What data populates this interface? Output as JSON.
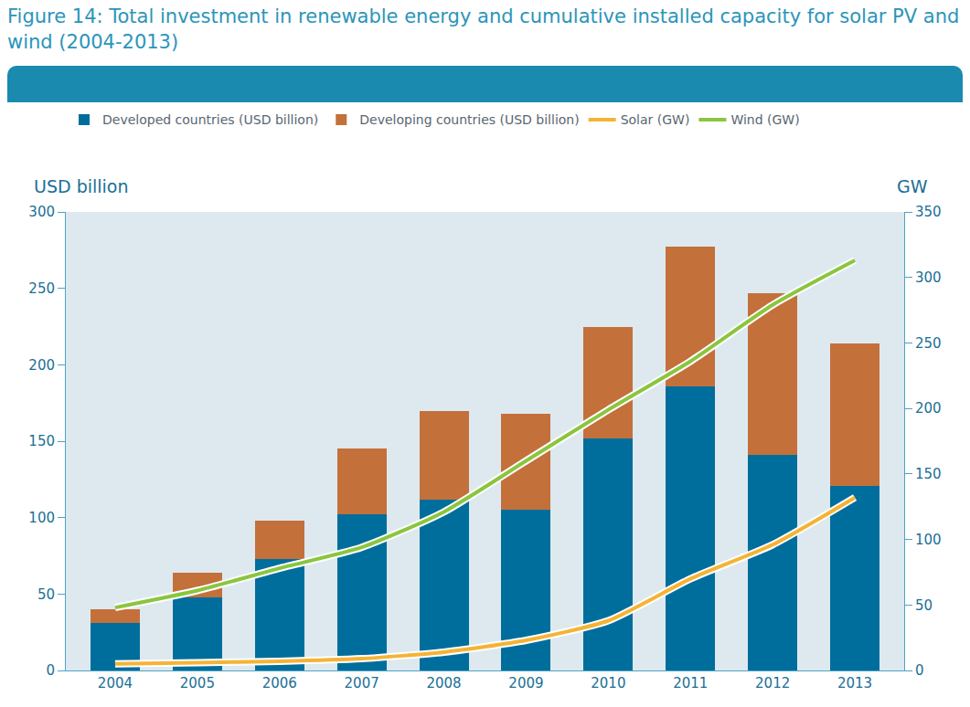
{
  "chart_data": {
    "type": "bar",
    "title": "Figure 14: Total investment in renewable energy and cumulative installed capacity for solar PV and wind (2004-2013)",
    "ylabel": "USD billion",
    "y2label": "GW",
    "categories": [
      "2004",
      "2005",
      "2006",
      "2007",
      "2008",
      "2009",
      "2010",
      "2011",
      "2012",
      "2013"
    ],
    "series": [
      {
        "name": "Developed countries (USD billion)",
        "type": "bar",
        "color": "#006e9c",
        "values": [
          31,
          48,
          73,
          102,
          112,
          105,
          152,
          186,
          141,
          121
        ]
      },
      {
        "name": "Developing countries (USD billion)",
        "type": "bar",
        "color": "#c4703b",
        "values": [
          9,
          16,
          25,
          43,
          58,
          63,
          73,
          91,
          106,
          93
        ]
      },
      {
        "name": "Solar (GW)",
        "type": "line",
        "axis": "y2",
        "color": "#f5b335",
        "values": [
          5,
          6,
          7,
          9,
          14,
          23,
          38,
          70,
          96,
          132
        ]
      },
      {
        "name": "Wind (GW)",
        "type": "line",
        "axis": "y2",
        "color": "#8bc53f",
        "values": [
          48,
          61,
          78,
          94,
          121,
          160,
          199,
          236,
          279,
          313
        ]
      }
    ],
    "stacked": true,
    "grid": false,
    "legend": "top",
    "ylim": [
      0,
      300
    ],
    "yticks": [
      0,
      50,
      100,
      150,
      200,
      250,
      300
    ],
    "y2lim": [
      0,
      350
    ],
    "y2ticks": [
      0,
      50,
      100,
      150,
      200,
      250,
      300,
      350
    ]
  }
}
